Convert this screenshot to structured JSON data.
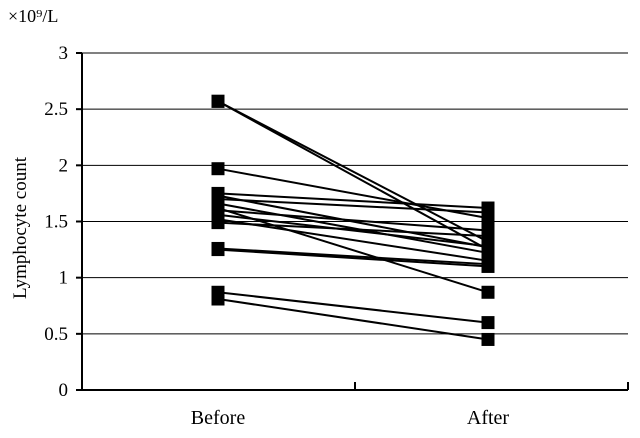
{
  "chart_data": {
    "type": "line",
    "title": "",
    "unit_label": "×10⁹/L",
    "ylabel": "Lymphocyte count",
    "xlabel": "",
    "categories": [
      "Before",
      "After"
    ],
    "ylim": [
      0,
      3
    ],
    "yticks": [
      0,
      0.5,
      1,
      1.5,
      2,
      2.5,
      3
    ],
    "ytick_labels": [
      "0",
      "0.5",
      "1",
      "1.5",
      "2",
      "2.5",
      "3"
    ],
    "grid": true,
    "legend": "none",
    "marker": "square",
    "line_color": "#000000",
    "series": [
      {
        "values": [
          2.57,
          1.25
        ]
      },
      {
        "values": [
          2.57,
          1.32
        ]
      },
      {
        "values": [
          1.97,
          1.53
        ]
      },
      {
        "values": [
          1.75,
          1.62
        ]
      },
      {
        "values": [
          1.73,
          1.27
        ]
      },
      {
        "values": [
          1.7,
          1.58
        ]
      },
      {
        "values": [
          1.66,
          1.22
        ]
      },
      {
        "values": [
          1.62,
          0.87
        ]
      },
      {
        "values": [
          1.6,
          1.42
        ]
      },
      {
        "values": [
          1.56,
          1.28
        ]
      },
      {
        "values": [
          1.52,
          1.15
        ]
      },
      {
        "values": [
          1.49,
          1.37
        ]
      },
      {
        "values": [
          1.26,
          1.12
        ]
      },
      {
        "values": [
          1.25,
          1.1
        ]
      },
      {
        "values": [
          0.87,
          0.6
        ]
      },
      {
        "values": [
          0.81,
          0.45
        ]
      }
    ]
  }
}
